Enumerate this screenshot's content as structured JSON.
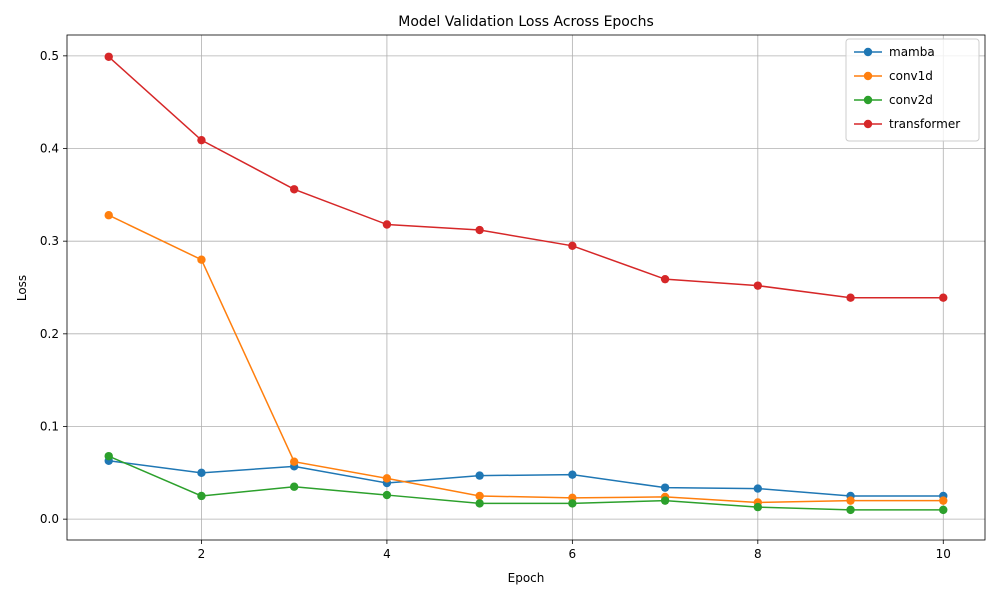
{
  "chart_data": {
    "type": "line",
    "title": "Model Validation Loss Across Epochs",
    "xlabel": "Epoch",
    "ylabel": "Loss",
    "x": [
      1,
      2,
      3,
      4,
      5,
      6,
      7,
      8,
      9,
      10
    ],
    "xlim": [
      0.55,
      10.45
    ],
    "ylim": [
      -0.0225,
      0.5225
    ],
    "xticks": [
      2,
      4,
      6,
      8,
      10
    ],
    "xtick_labels": [
      "2",
      "4",
      "6",
      "8",
      "10"
    ],
    "yticks": [
      0.0,
      0.1,
      0.2,
      0.3,
      0.4,
      0.5
    ],
    "ytick_labels": [
      "0.0",
      "0.1",
      "0.2",
      "0.3",
      "0.4",
      "0.5"
    ],
    "grid": true,
    "legend_position": "top-right",
    "series": [
      {
        "name": "mamba",
        "color": "#1f77b4",
        "values": [
          0.063,
          0.05,
          0.057,
          0.039,
          0.047,
          0.048,
          0.034,
          0.033,
          0.025,
          0.025
        ]
      },
      {
        "name": "conv1d",
        "color": "#ff7f0e",
        "values": [
          0.328,
          0.28,
          0.062,
          0.044,
          0.025,
          0.023,
          0.024,
          0.018,
          0.02,
          0.02
        ]
      },
      {
        "name": "conv2d",
        "color": "#2ca02c",
        "values": [
          0.068,
          0.025,
          0.035,
          0.026,
          0.017,
          0.017,
          0.02,
          0.013,
          0.01,
          0.01
        ]
      },
      {
        "name": "transformer",
        "color": "#d62728",
        "values": [
          0.499,
          0.409,
          0.356,
          0.318,
          0.312,
          0.295,
          0.259,
          0.252,
          0.239,
          0.239
        ]
      }
    ]
  }
}
